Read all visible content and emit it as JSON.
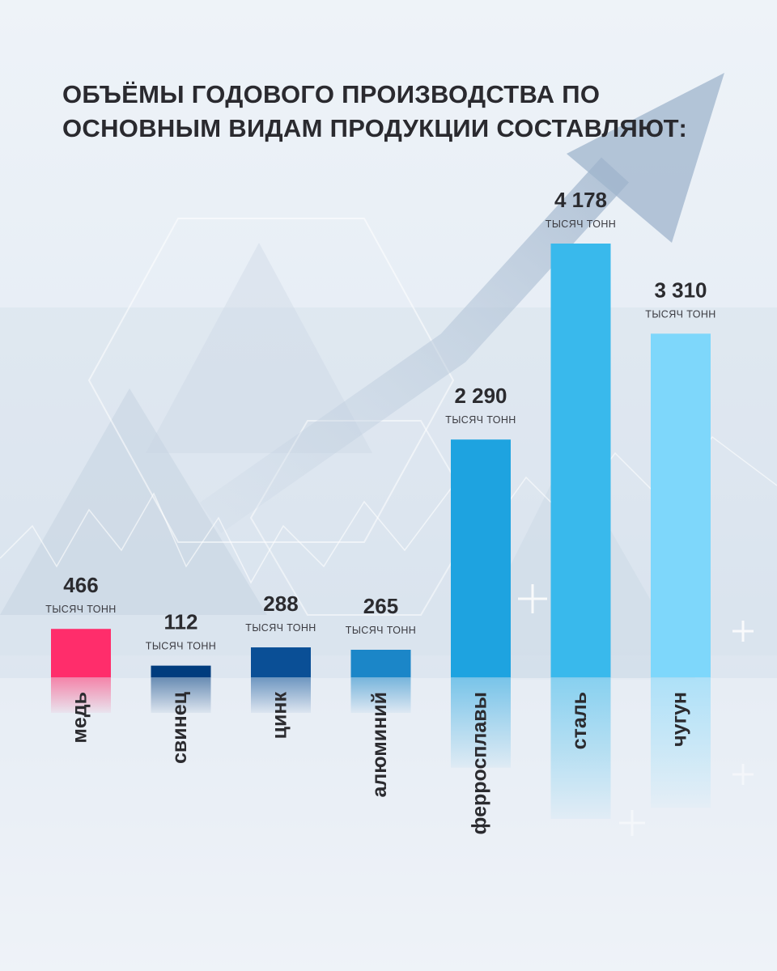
{
  "title_lines": [
    "ОБЪЁМЫ ГОДОВОГО ПРОИЗВОДСТВА ПО",
    "ОСНОВНЫМ ВИДАМ ПРОДУКЦИИ СОСТАВЛЯЮТ:"
  ],
  "chart_data": {
    "type": "bar",
    "title": "ОБЪЁМЫ ГОДОВОГО ПРОИЗВОДСТВА ПО ОСНОВНЫМ ВИДАМ ПРОДУКЦИИ СОСТАВЛЯЮТ:",
    "unit": "тысяч тонн",
    "categories": [
      "медь",
      "свинец",
      "цинк",
      "алюминий",
      "ферросплавы",
      "сталь",
      "чугун"
    ],
    "values": [
      466,
      112,
      288,
      265,
      2290,
      4178,
      3310
    ],
    "value_labels": [
      "466",
      "112",
      "288",
      "265",
      "2 290",
      "4 178",
      "3 310"
    ],
    "colors": [
      "#ff2d6b",
      "#003c7e",
      "#0a4f96",
      "#1b86c8",
      "#1ea3e0",
      "#39b9ec",
      "#7ed7fb"
    ],
    "grid": false,
    "legend": "none"
  }
}
